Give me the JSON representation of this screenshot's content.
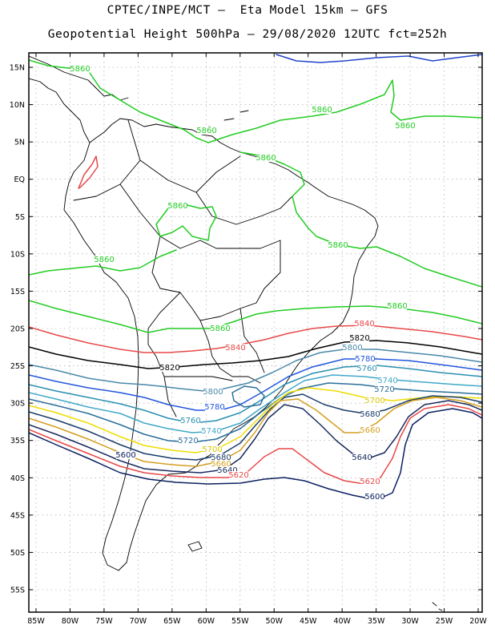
{
  "header": {
    "line1": "CPTEC/INPE/MCT –  Eta Model 15km – GFS",
    "line2": "Geopotential Height 500hPa – 29/08/2020 12UTC fct=252h"
  },
  "axes": {
    "lat_labels": [
      "15N",
      "10N",
      "5N",
      "EQ",
      "5S",
      "10S",
      "15S",
      "20S",
      "25S",
      "30S",
      "35S",
      "40S",
      "45S",
      "50S",
      "55S"
    ],
    "lon_labels": [
      "85W",
      "80W",
      "75W",
      "70W",
      "65W",
      "60W",
      "55W",
      "50W",
      "45W",
      "40W",
      "35W",
      "30W",
      "25W",
      "20W"
    ]
  },
  "colors": {
    "c5860": "#22cc22",
    "c5840": "#e84848",
    "c5820": "#000000",
    "c5800": "#4a88a8",
    "c5780": "#2255dd",
    "c5760": "#2a8fb0",
    "c5740": "#42a8c8",
    "c5720": "#2a6f9a",
    "c5700": "#eedd00",
    "c5680": "#1a3c6a",
    "c5660": "#d4a020",
    "c5640": "#1a2c60",
    "c5620": "#e84848",
    "c5600": "#0a2060",
    "coast": "#000000",
    "grid": "#999999"
  },
  "contour_labels": [
    {
      "id": "l5860a",
      "text": "5860",
      "color": "#22cc22"
    },
    {
      "id": "l5860b",
      "text": "5860",
      "color": "#22cc22"
    },
    {
      "id": "l5860c",
      "text": "5860",
      "color": "#22cc22"
    },
    {
      "id": "l5860d",
      "text": "5860",
      "color": "#22cc22"
    },
    {
      "id": "l5860e",
      "text": "5860",
      "color": "#22cc22"
    },
    {
      "id": "l5860f",
      "text": "5860",
      "color": "#22cc22"
    },
    {
      "id": "l5860g",
      "text": "5860",
      "color": "#22cc22"
    },
    {
      "id": "l5860h",
      "text": "5860",
      "color": "#22cc22"
    },
    {
      "id": "l5860i",
      "text": "5860",
      "color": "#22cc22"
    },
    {
      "id": "l5860j",
      "text": "5860",
      "color": "#22cc22"
    },
    {
      "id": "l5860k",
      "text": "5860",
      "color": "#22cc22"
    },
    {
      "id": "l5840a",
      "text": "5840",
      "color": "#e84848"
    },
    {
      "id": "l5840b",
      "text": "5840",
      "color": "#e84848"
    },
    {
      "id": "l5820a",
      "text": "5820",
      "color": "#000000"
    },
    {
      "id": "l5820b",
      "text": "5820",
      "color": "#000000"
    },
    {
      "id": "l5800a",
      "text": "5800",
      "color": "#4a88a8"
    },
    {
      "id": "l5800b",
      "text": "5800",
      "color": "#4a88a8"
    },
    {
      "id": "l5780a",
      "text": "5780",
      "color": "#2255dd"
    },
    {
      "id": "l5780b",
      "text": "5780",
      "color": "#2255dd"
    },
    {
      "id": "l5760a",
      "text": "5760",
      "color": "#2a8fb0"
    },
    {
      "id": "l5760b",
      "text": "5760",
      "color": "#2a8fb0"
    },
    {
      "id": "l5740a",
      "text": "5740",
      "color": "#42a8c8"
    },
    {
      "id": "l5740b",
      "text": "5740",
      "color": "#42a8c8"
    },
    {
      "id": "l5720a",
      "text": "5720",
      "color": "#2a6f9a"
    },
    {
      "id": "l5720b",
      "text": "5720",
      "color": "#2a6f9a"
    },
    {
      "id": "l5700a",
      "text": "5700",
      "color": "#d8c800"
    },
    {
      "id": "l5700b",
      "text": "5700",
      "color": "#d8c800"
    },
    {
      "id": "l5680a",
      "text": "5680",
      "color": "#1a3c6a"
    },
    {
      "id": "l5680b",
      "text": "5680",
      "color": "#1a3c6a"
    },
    {
      "id": "l5660a",
      "text": "5660",
      "color": "#d4a020"
    },
    {
      "id": "l5660b",
      "text": "5660",
      "color": "#d4a020"
    },
    {
      "id": "l5640a",
      "text": "5640",
      "color": "#1a2c60"
    },
    {
      "id": "l5640b",
      "text": "5640",
      "color": "#1a2c60"
    },
    {
      "id": "l5620a",
      "text": "5620",
      "color": "#e84848"
    },
    {
      "id": "l5620b",
      "text": "5620",
      "color": "#e84848"
    },
    {
      "id": "l5600a",
      "text": "5600",
      "color": "#0a2060"
    },
    {
      "id": "l5600b",
      "text": "5600",
      "color": "#0a2060"
    }
  ]
}
